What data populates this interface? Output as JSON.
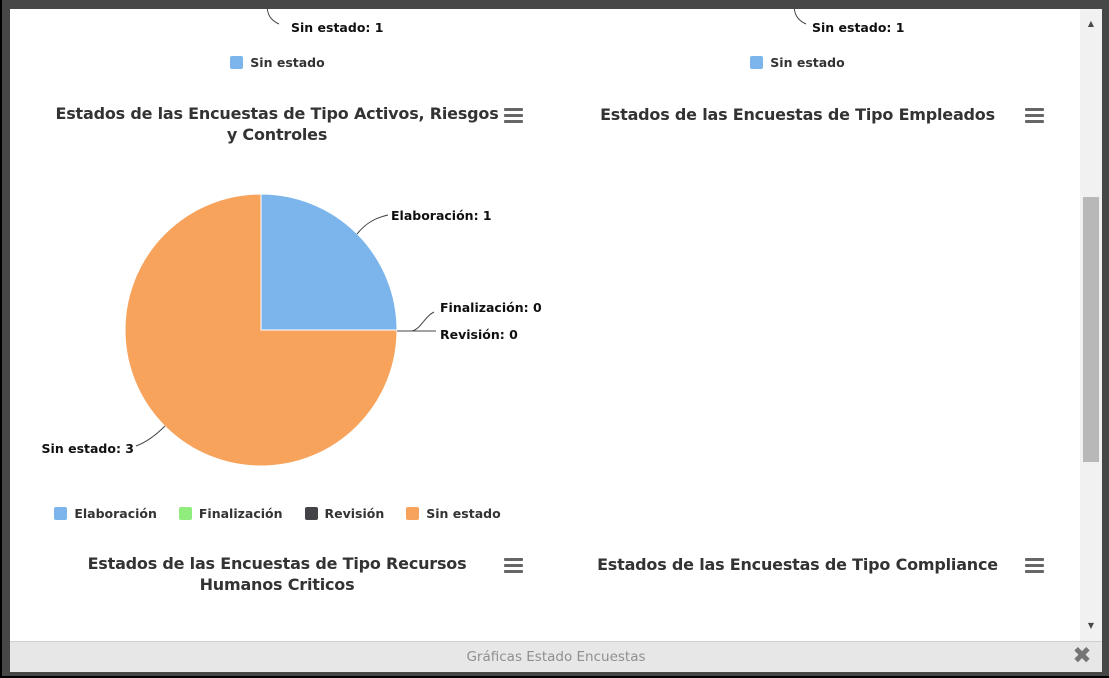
{
  "footer": {
    "title": "Gráficas Estado Encuestas",
    "close_icon": "✖"
  },
  "scrollbar": {
    "up_icon": "▲",
    "down_icon": "▼"
  },
  "colors": {
    "elaboracion": "#7cb5ec",
    "finalizacion": "#90ed7d",
    "revision": "#434348",
    "sin_estado": "#f7a35c",
    "title_text": "#333333"
  },
  "partial_top_left": {
    "data_label": "Sin estado: 1",
    "legend_label": "Sin estado"
  },
  "partial_top_right": {
    "data_label": "Sin estado: 1",
    "legend_label": "Sin estado"
  },
  "activos": {
    "title_line1": "Estados de las Encuestas de Tipo Activos, Riesgos",
    "title_line2": "y Controles",
    "label_elaboracion": "Elaboración: 1",
    "label_finalizacion": "Finalización: 0",
    "label_revision": "Revisión: 0",
    "label_sin_estado": "Sin estado: 3",
    "legend": {
      "elaboracion": "Elaboración",
      "finalizacion": "Finalización",
      "revision": "Revisión",
      "sin_estado": "Sin estado"
    }
  },
  "empleados": {
    "title": "Estados de las Encuestas de Tipo Empleados"
  },
  "recursos": {
    "title_line1": "Estados de las Encuestas de Tipo Recursos",
    "title_line2": "Humanos Criticos"
  },
  "compliance": {
    "title": "Estados de las Encuestas de Tipo Compliance"
  },
  "chart_data": [
    {
      "type": "pie",
      "position": "top-left, scrolled so only bottom is visible",
      "categories": [
        "Sin estado"
      ],
      "values": [
        1
      ],
      "colors": [
        "#7cb5ec"
      ],
      "legend_position": "bottom"
    },
    {
      "type": "pie",
      "position": "top-right, scrolled so only bottom is visible",
      "categories": [
        "Sin estado"
      ],
      "values": [
        1
      ],
      "colors": [
        "#7cb5ec"
      ],
      "legend_position": "bottom"
    },
    {
      "type": "pie",
      "title": "Estados de las Encuestas de Tipo Activos, Riesgos y Controles",
      "categories": [
        "Elaboración",
        "Finalización",
        "Revisión",
        "Sin estado"
      ],
      "values": [
        1,
        0,
        0,
        3
      ],
      "colors": [
        "#7cb5ec",
        "#90ed7d",
        "#434348",
        "#f7a35c"
      ],
      "data_labels": [
        "Elaboración: 1",
        "Finalización: 0",
        "Revisión: 0",
        "Sin estado: 3"
      ],
      "legend_position": "bottom"
    },
    {
      "type": "pie",
      "title": "Estados de las Encuestas de Tipo Empleados",
      "categories": [],
      "values": []
    },
    {
      "type": "pie",
      "title": "Estados de las Encuestas de Tipo Recursos Humanos Criticos",
      "categories": [],
      "values": []
    },
    {
      "type": "pie",
      "title": "Estados de las Encuestas de Tipo Compliance",
      "categories": [],
      "values": []
    }
  ]
}
